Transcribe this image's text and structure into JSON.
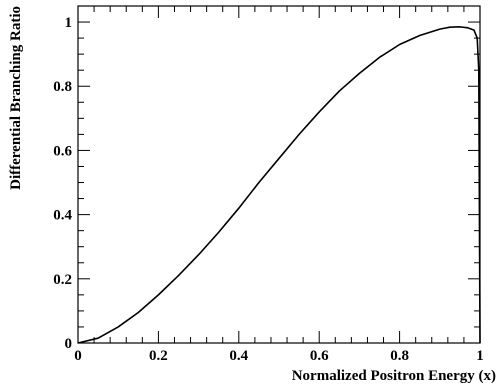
{
  "chart_data": {
    "type": "line",
    "title": "",
    "xlabel": "Normalized Positron Energy (x)",
    "ylabel": "Differential Branching Ratio",
    "xlim": [
      0,
      1
    ],
    "ylim": [
      0,
      1.05
    ],
    "x_ticks": [
      0,
      0.2,
      0.4,
      0.6,
      0.8,
      1
    ],
    "x_tick_labels": [
      "0",
      "0.2",
      "0.4",
      "0.6",
      "0.8",
      "1"
    ],
    "y_ticks": [
      0,
      0.2,
      0.4,
      0.6,
      0.8,
      1
    ],
    "y_tick_labels": [
      "0",
      "0.2",
      "0.4",
      "0.6",
      "0.8",
      "1"
    ],
    "grid": false,
    "legend": "none",
    "series": [
      {
        "x": [
          0,
          0.05,
          0.1,
          0.15,
          0.2,
          0.25,
          0.3,
          0.35,
          0.4,
          0.45,
          0.5,
          0.55,
          0.6,
          0.65,
          0.7,
          0.75,
          0.8,
          0.85,
          0.9,
          0.925,
          0.95,
          0.97,
          0.985,
          0.993,
          0.997,
          1.0
        ],
        "y": [
          0,
          0.015,
          0.05,
          0.095,
          0.15,
          0.21,
          0.275,
          0.345,
          0.42,
          0.5,
          0.575,
          0.65,
          0.72,
          0.785,
          0.84,
          0.89,
          0.93,
          0.958,
          0.978,
          0.984,
          0.985,
          0.982,
          0.975,
          0.95,
          0.85,
          0.0
        ],
        "color": "#000000"
      }
    ]
  }
}
